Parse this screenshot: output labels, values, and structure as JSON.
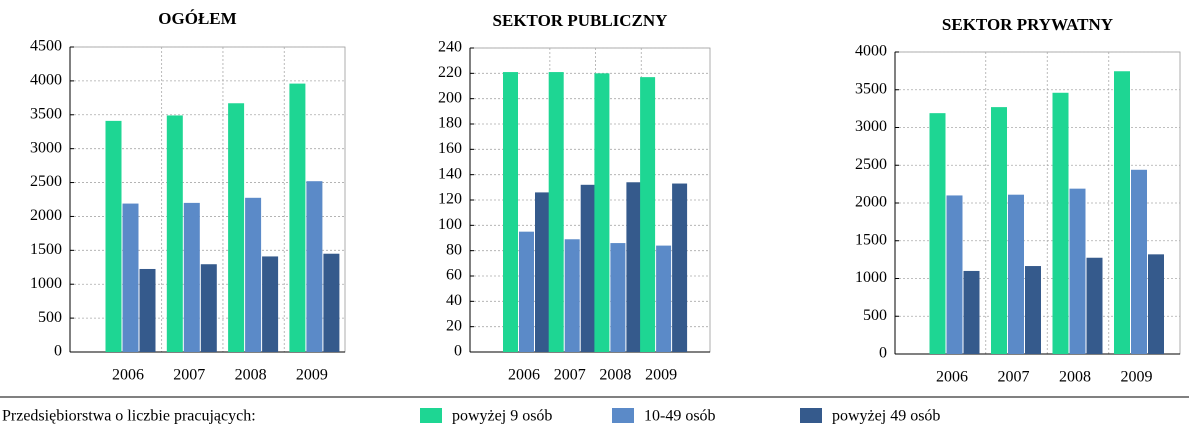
{
  "chart_data": [
    {
      "type": "bar",
      "title": "OGÓŁEM",
      "categories": [
        "2006",
        "2007",
        "2008",
        "2009"
      ],
      "series": [
        {
          "name": "powyżej 9 osób",
          "color": "#1ed693",
          "values": [
            3410,
            3490,
            3670,
            3960
          ]
        },
        {
          "name": "10-49 osób",
          "color": "#5b8ac8",
          "values": [
            2190,
            2200,
            2275,
            2520
          ]
        },
        {
          "name": "powyżej 49 osób",
          "color": "#355a8c",
          "values": [
            1225,
            1295,
            1410,
            1450
          ]
        }
      ],
      "ylim": [
        0,
        4500
      ],
      "yticks": [
        0,
        500,
        1000,
        1500,
        2000,
        2500,
        3000,
        3500,
        4000,
        4500
      ],
      "grid": true
    },
    {
      "type": "bar",
      "title": "SEKTOR PUBLICZNY",
      "categories": [
        "2006",
        "2007",
        "2008",
        "2009"
      ],
      "series": [
        {
          "name": "powyżej 9 osób",
          "color": "#1ed693",
          "values": [
            221,
            221,
            220,
            217
          ]
        },
        {
          "name": "10-49 osób",
          "color": "#5b8ac8",
          "values": [
            95,
            89,
            86,
            84
          ]
        },
        {
          "name": "powyżej 49 osób",
          "color": "#355a8c",
          "values": [
            126,
            132,
            134,
            133
          ]
        }
      ],
      "ylim": [
        0,
        240
      ],
      "yticks": [
        0,
        20,
        40,
        60,
        80,
        100,
        120,
        140,
        160,
        180,
        200,
        220,
        240
      ],
      "grid": true
    },
    {
      "type": "bar",
      "title": "SEKTOR PRYWATNY",
      "categories": [
        "2006",
        "2007",
        "2008",
        "2009"
      ],
      "series": [
        {
          "name": "powyżej 9 osób",
          "color": "#1ed693",
          "values": [
            3190,
            3270,
            3460,
            3745
          ]
        },
        {
          "name": "10-49 osób",
          "color": "#5b8ac8",
          "values": [
            2100,
            2110,
            2190,
            2440
          ]
        },
        {
          "name": "powyżej 49 osób",
          "color": "#355a8c",
          "values": [
            1100,
            1165,
            1275,
            1320
          ]
        }
      ],
      "ylim": [
        0,
        4000
      ],
      "yticks": [
        0,
        500,
        1000,
        1500,
        2000,
        2500,
        3000,
        3500,
        4000
      ],
      "grid": true
    }
  ],
  "legend_title": "Przedsiębiorstwa o liczbie pracujących:"
}
